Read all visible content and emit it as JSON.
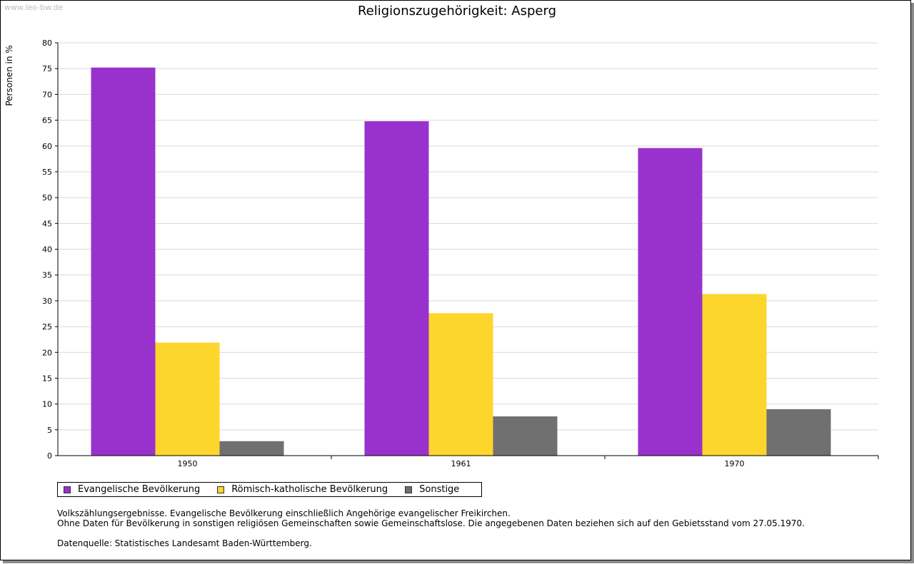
{
  "watermark": "www.leo-bw.de",
  "chart_data": {
    "type": "bar",
    "title": "Religionszugehörigkeit: Asperg",
    "xlabel": "",
    "ylabel": "Personen in %",
    "ylim": [
      0,
      80
    ],
    "yticks": [
      0,
      5,
      10,
      15,
      20,
      25,
      30,
      35,
      40,
      45,
      50,
      55,
      60,
      65,
      70,
      75,
      80
    ],
    "grid": true,
    "legend_position": "bottom-left",
    "categories": [
      "1950",
      "1961",
      "1970"
    ],
    "series": [
      {
        "name": "Evangelische Bevölkerung",
        "color": "#9932cc",
        "values": [
          75.2,
          64.8,
          59.6
        ]
      },
      {
        "name": "Römisch-katholische Bevölkerung",
        "color": "#fcd52d",
        "values": [
          21.9,
          27.6,
          31.3
        ]
      },
      {
        "name": "Sonstige",
        "color": "#707070",
        "values": [
          2.8,
          7.6,
          9.0
        ]
      }
    ]
  },
  "notes": {
    "line1": "Volkszählungsergebnisse. Evangelische Bevölkerung einschließlich Angehörige evangelischer Freikirchen.",
    "line2": "Ohne Daten für Bevölkerung in sonstigen religiösen Gemeinschaften sowie Gemeinschaftslose. Die angegebenen Daten beziehen sich auf den Gebietsstand vom 27.05.1970.",
    "source": "Datenquelle: Statistisches Landesamt Baden-Württemberg."
  }
}
